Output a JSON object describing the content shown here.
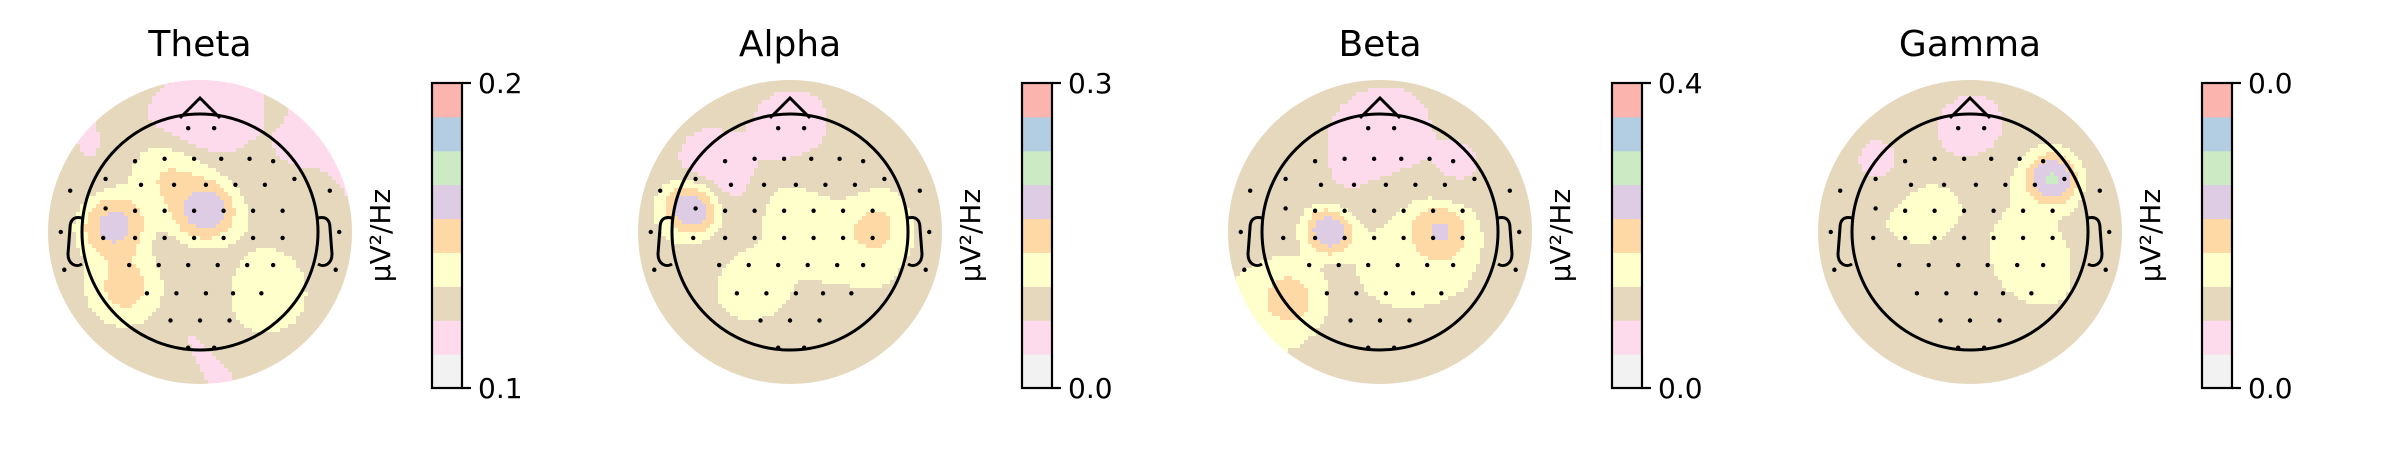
{
  "palette": [
    "#f2f2f2",
    "#fddaec",
    "#e5d8bd",
    "#ffffcc",
    "#fed9a6",
    "#decbe4",
    "#ccebc5",
    "#b3cde3",
    "#fbb4ae"
  ],
  "chart_data": [
    {
      "type": "heatmap",
      "title": "Theta",
      "colorbar": {
        "min_label": "0.1",
        "max_label": "0.2",
        "unit_label": "µV²/Hz",
        "levels": 9
      },
      "hotspots": [
        {
          "x": 0.05,
          "y": 0.15,
          "value": 0.95,
          "sigma": 0.16
        },
        {
          "x": -0.72,
          "y": 0.05,
          "value": 0.85,
          "sigma": 0.16
        },
        {
          "x": -0.25,
          "y": 0.45,
          "value": 0.6,
          "sigma": 0.2
        },
        {
          "x": 0.15,
          "y": -0.3,
          "value": 0.25,
          "sigma": 0.25
        },
        {
          "x": 0.55,
          "y": 0.55,
          "value": 0.2,
          "sigma": 0.2
        },
        {
          "x": 0.0,
          "y": 0.95,
          "value": 0.0,
          "sigma": 0.22
        },
        {
          "x": -0.6,
          "y": -0.45,
          "value": 0.65,
          "sigma": 0.18
        },
        {
          "x": 0.5,
          "y": -0.5,
          "value": 0.55,
          "sigma": 0.2
        },
        {
          "x": 0.6,
          "y": 0.1,
          "value": 0.3,
          "sigma": 0.2
        }
      ],
      "base_value": 0.25
    },
    {
      "type": "heatmap",
      "title": "Alpha",
      "colorbar": {
        "min_label": "0.0",
        "max_label": "0.3",
        "unit_label": "µV²/Hz",
        "levels": 9
      },
      "hotspots": [
        {
          "x": -0.82,
          "y": 0.22,
          "value": 0.95,
          "sigma": 0.13
        },
        {
          "x": 0.15,
          "y": 0.05,
          "value": 0.45,
          "sigma": 0.25
        },
        {
          "x": 0.72,
          "y": 0.05,
          "value": 0.55,
          "sigma": 0.16
        },
        {
          "x": -0.3,
          "y": -0.45,
          "value": 0.55,
          "sigma": 0.16
        },
        {
          "x": 0.0,
          "y": 0.9,
          "value": 0.0,
          "sigma": 0.2
        },
        {
          "x": 0.35,
          "y": 0.45,
          "value": 0.2,
          "sigma": 0.2
        },
        {
          "x": -0.6,
          "y": 0.55,
          "value": 0.1,
          "sigma": 0.2
        }
      ],
      "base_value": 0.3
    },
    {
      "type": "heatmap",
      "title": "Beta",
      "colorbar": {
        "min_label": "0.0",
        "max_label": "0.4",
        "unit_label": "µV²/Hz",
        "levels": 9
      },
      "hotspots": [
        {
          "x": -0.42,
          "y": 0.02,
          "value": 0.95,
          "sigma": 0.12
        },
        {
          "x": 0.5,
          "y": 0.0,
          "value": 0.7,
          "sigma": 0.14
        },
        {
          "x": 0.0,
          "y": 0.85,
          "value": 0.0,
          "sigma": 0.25
        },
        {
          "x": -0.75,
          "y": -0.55,
          "value": 0.6,
          "sigma": 0.16
        },
        {
          "x": 0.1,
          "y": -0.3,
          "value": 0.45,
          "sigma": 0.22
        },
        {
          "x": 0.6,
          "y": 0.55,
          "value": 0.15,
          "sigma": 0.18
        },
        {
          "x": -0.2,
          "y": 0.4,
          "value": 0.2,
          "sigma": 0.2
        }
      ],
      "base_value": 0.3
    },
    {
      "type": "heatmap",
      "title": "Gamma",
      "colorbar": {
        "min_label": "0.0",
        "max_label": "0.0",
        "unit_label": "µV²/Hz",
        "levels": 9
      },
      "hotspots": [
        {
          "x": 0.7,
          "y": 0.45,
          "value": 0.9,
          "sigma": 0.12
        },
        {
          "x": -0.45,
          "y": 0.12,
          "value": 0.45,
          "sigma": 0.2
        },
        {
          "x": 0.0,
          "y": 0.9,
          "value": 0.05,
          "sigma": 0.2
        },
        {
          "x": 0.45,
          "y": -0.25,
          "value": 0.45,
          "sigma": 0.16
        },
        {
          "x": -0.6,
          "y": -0.45,
          "value": 0.3,
          "sigma": 0.2
        },
        {
          "x": 0.0,
          "y": -0.5,
          "value": 0.3,
          "sigma": 0.22
        },
        {
          "x": -0.75,
          "y": 0.6,
          "value": 0.2,
          "sigma": 0.18
        }
      ],
      "base_value": 0.3
    }
  ]
}
